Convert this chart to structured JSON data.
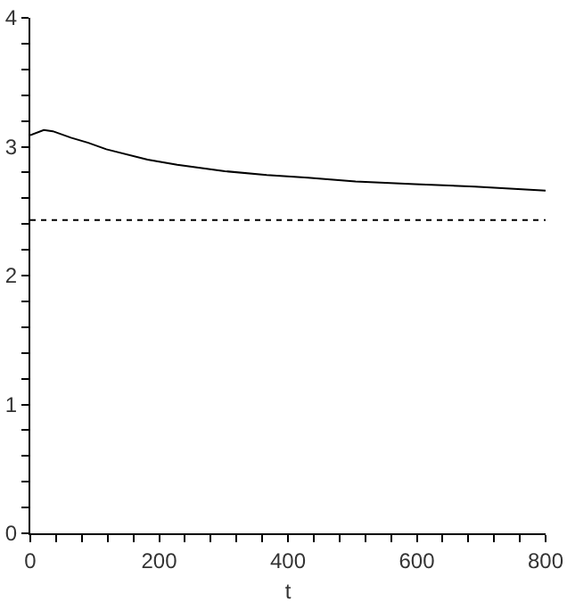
{
  "chart_data": {
    "type": "line",
    "xlabel": "t",
    "x": [
      0,
      21,
      35,
      63,
      90,
      118,
      182,
      228,
      302,
      367,
      431,
      505,
      597,
      690,
      800
    ],
    "series": [
      {
        "color": "#000000",
        "values": [
          3.09,
          3.13,
          3.12,
          3.07,
          3.03,
          2.98,
          2.9,
          2.86,
          2.81,
          2.78,
          2.76,
          2.73,
          2.71,
          2.69,
          2.66
        ]
      }
    ],
    "xlim": [
      0,
      800
    ],
    "ylim": [
      0,
      4
    ],
    "xticks": [
      0,
      {
        "value": 40,
        "label": null
      },
      {
        "value": 80,
        "label": null
      },
      {
        "value": 120,
        "label": null
      },
      {
        "value": 160,
        "label": null
      },
      200,
      {
        "value": 240,
        "label": null
      },
      {
        "value": 280,
        "label": null
      },
      {
        "value": 320,
        "label": null
      },
      {
        "value": 360,
        "label": null
      },
      400,
      {
        "value": 440,
        "label": null
      },
      {
        "value": 480,
        "label": null
      },
      {
        "value": 520,
        "label": null
      },
      {
        "value": 560,
        "label": null
      },
      600,
      {
        "value": 640,
        "label": null
      },
      {
        "value": 680,
        "label": null
      },
      {
        "value": 720,
        "label": null
      },
      {
        "value": 760,
        "label": null
      },
      800
    ],
    "yticks": [
      0,
      {
        "value": 0.2,
        "label": null
      },
      {
        "value": 0.4,
        "label": null
      },
      {
        "value": 0.6,
        "label": null
      },
      {
        "value": 0.8,
        "label": null
      },
      1,
      {
        "value": 1.2,
        "label": null
      },
      {
        "value": 1.4,
        "label": null
      },
      {
        "value": 1.6,
        "label": null
      },
      {
        "value": 1.8,
        "label": null
      },
      2,
      {
        "value": 2.2,
        "label": null
      },
      {
        "value": 2.4,
        "label": null
      },
      {
        "value": 2.6,
        "label": null
      },
      {
        "value": 2.8,
        "label": null
      },
      3,
      {
        "value": 3.2,
        "label": null
      },
      {
        "value": 3.4,
        "label": null
      },
      {
        "value": 3.6,
        "label": null
      },
      {
        "value": 3.8,
        "label": null
      },
      4
    ],
    "ref_lines": [
      {
        "axis": "y",
        "value": 2.43,
        "color": "#000000",
        "line_style": "dotted"
      }
    ],
    "grid": false,
    "marker": "none",
    "line_style": "solid"
  }
}
